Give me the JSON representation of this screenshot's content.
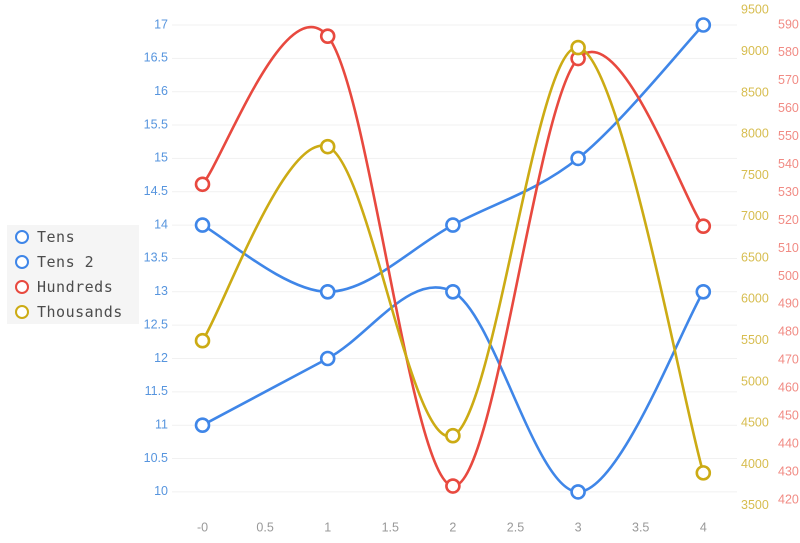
{
  "chart_data": {
    "type": "line",
    "title": "",
    "xlabel": "",
    "ylabel": "",
    "marker": "open-circle",
    "grid": "horizontal-only",
    "legend_position": "middle-left",
    "x": [
      0,
      1,
      2,
      3,
      4
    ],
    "x_tick_labels": [
      "-0",
      "0.5",
      "1",
      "1.5",
      "2",
      "2.5",
      "3",
      "3.5",
      "4"
    ],
    "axes": {
      "left": {
        "side": "left",
        "min": 10,
        "max": 17,
        "tick_step": 0.5,
        "tick_labels": [
          "17",
          "16.5",
          "16",
          "15.5",
          "15",
          "14.5",
          "14",
          "13.5",
          "13",
          "12.5",
          "12",
          "11.5",
          "11",
          "10.5",
          "10"
        ],
        "label_color": "#5795de"
      },
      "thousands": {
        "side": "right-inner",
        "min": 3500,
        "max": 9500,
        "tick_step": 500,
        "tick_labels": [
          "9500",
          "9000",
          "8500",
          "8000",
          "7500",
          "7000",
          "6500",
          "6000",
          "5500",
          "5000",
          "4500",
          "4000",
          "3500"
        ],
        "label_color": "#d7bd4f"
      },
      "hundreds": {
        "side": "right-outer",
        "min": 420,
        "max": 590,
        "tick_step": 10,
        "tick_labels": [
          "590",
          "580",
          "570",
          "560",
          "550",
          "540",
          "530",
          "520",
          "510",
          "500",
          "490",
          "480",
          "470",
          "460",
          "450",
          "440",
          "430",
          "420"
        ],
        "label_color": "#f18b84"
      }
    },
    "series": [
      {
        "name": "Tens",
        "axis": "left",
        "color": "#3f86e8",
        "values": [
          11,
          12,
          13,
          10,
          13
        ]
      },
      {
        "name": "Tens 2",
        "axis": "left",
        "color": "#3f86e8",
        "values": [
          14,
          13,
          14,
          15,
          17
        ]
      },
      {
        "name": "Hundreds",
        "axis": "hundreds",
        "color": "#e8493f",
        "values": [
          533,
          586,
          425,
          578,
          518
        ]
      },
      {
        "name": "Thousands",
        "axis": "thousands",
        "color": "#ccab14",
        "values": [
          5500,
          7850,
          4350,
          9050,
          3900
        ]
      }
    ]
  },
  "colors": {
    "background": "#ffffff",
    "grid": "#f1f1f1",
    "x_axis_labels": "#999999",
    "legend_bg": "#f5f5f5",
    "legend_text": "#4c4c4c"
  }
}
